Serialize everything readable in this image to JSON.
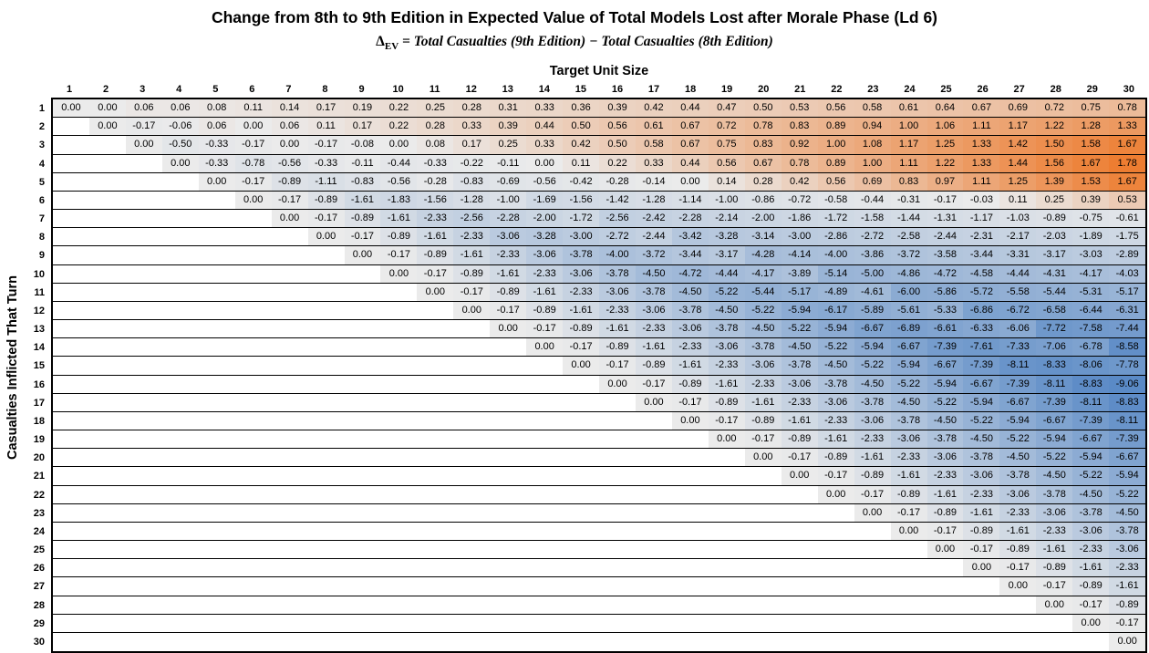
{
  "title": "Change from 8th to 9th Edition in Expected Value of Total Models Lost after Morale Phase (Ld 6)",
  "formula": {
    "delta": "Δ",
    "subscript": "EV",
    "rhs": " = Total Casualties (9th Edition) − Total Casualties (8th Edition)"
  },
  "x_axis_label": "Target Unit Size",
  "y_axis_label": "Casualties Inflicted That Turn",
  "chart_data": {
    "type": "heatmap",
    "title": "Change from 8th to 9th Edition in Expected Value of Total Models Lost after Morale Phase (Ld 6)",
    "subtitle": "ΔEV = Total Casualties (9th Edition) − Total Casualties (8th Edition)",
    "xlabel": "Target Unit Size",
    "ylabel": "Casualties Inflicted That Turn",
    "x": [
      1,
      2,
      3,
      4,
      5,
      6,
      7,
      8,
      9,
      10,
      11,
      12,
      13,
      14,
      15,
      16,
      17,
      18,
      19,
      20,
      21,
      22,
      23,
      24,
      25,
      26,
      27,
      28,
      29,
      30
    ],
    "y": [
      1,
      2,
      3,
      4,
      5,
      6,
      7,
      8,
      9,
      10,
      11,
      12,
      13,
      14,
      15,
      16,
      17,
      18,
      19,
      20,
      21,
      22,
      23,
      24,
      25,
      26,
      27,
      28,
      29,
      30
    ],
    "note": "Row r contains values for columns r through 30 (upper triangle); cells below the diagonal are blank.",
    "colorscale": {
      "min": -9.06,
      "mid": 0,
      "max": 1.78,
      "min_color": "#5A8AC6",
      "mid_color": "#EBEBEB",
      "max_color": "#ED7D31",
      "empty_color": "#FFFFFF"
    },
    "rows_values": [
      [
        0.0,
        0.0,
        0.06,
        0.06,
        0.08,
        0.11,
        0.14,
        0.17,
        0.19,
        0.22,
        0.25,
        0.28,
        0.31,
        0.33,
        0.36,
        0.39,
        0.42,
        0.44,
        0.47,
        0.5,
        0.53,
        0.56,
        0.58,
        0.61,
        0.64,
        0.67,
        0.69,
        0.72,
        0.75,
        0.78
      ],
      [
        0.0,
        -0.17,
        -0.06,
        0.06,
        0.0,
        0.06,
        0.11,
        0.17,
        0.22,
        0.28,
        0.33,
        0.39,
        0.44,
        0.5,
        0.56,
        0.61,
        0.67,
        0.72,
        0.78,
        0.83,
        0.89,
        0.94,
        1.0,
        1.06,
        1.11,
        1.17,
        1.22,
        1.28,
        1.33
      ],
      [
        0.0,
        -0.5,
        -0.33,
        -0.17,
        0.0,
        -0.17,
        -0.08,
        0.0,
        0.08,
        0.17,
        0.25,
        0.33,
        0.42,
        0.5,
        0.58,
        0.67,
        0.75,
        0.83,
        0.92,
        1.0,
        1.08,
        1.17,
        1.25,
        1.33,
        1.42,
        1.5,
        1.58,
        1.67
      ],
      [
        0.0,
        -0.33,
        -0.78,
        -0.56,
        -0.33,
        -0.11,
        -0.44,
        -0.33,
        -0.22,
        -0.11,
        0.0,
        0.11,
        0.22,
        0.33,
        0.44,
        0.56,
        0.67,
        0.78,
        0.89,
        1.0,
        1.11,
        1.22,
        1.33,
        1.44,
        1.56,
        1.67,
        1.78
      ],
      [
        0.0,
        -0.17,
        -0.89,
        -1.11,
        -0.83,
        -0.56,
        -0.28,
        -0.83,
        -0.69,
        -0.56,
        -0.42,
        -0.28,
        -0.14,
        0.0,
        0.14,
        0.28,
        0.42,
        0.56,
        0.69,
        0.83,
        0.97,
        1.11,
        1.25,
        1.39,
        1.53,
        1.67
      ],
      [
        0.0,
        -0.17,
        -0.89,
        -1.61,
        -1.83,
        -1.56,
        -1.28,
        -1.0,
        -1.69,
        -1.56,
        -1.42,
        -1.28,
        -1.14,
        -1.0,
        -0.86,
        -0.72,
        -0.58,
        -0.44,
        -0.31,
        -0.17,
        -0.03,
        0.11,
        0.25,
        0.39,
        0.53
      ],
      [
        0.0,
        -0.17,
        -0.89,
        -1.61,
        -2.33,
        -2.56,
        -2.28,
        -2.0,
        -1.72,
        -2.56,
        -2.42,
        -2.28,
        -2.14,
        -2.0,
        -1.86,
        -1.72,
        -1.58,
        -1.44,
        -1.31,
        -1.17,
        -1.03,
        -0.89,
        -0.75,
        -0.61
      ],
      [
        0.0,
        -0.17,
        -0.89,
        -1.61,
        -2.33,
        -3.06,
        -3.28,
        -3.0,
        -2.72,
        -2.44,
        -3.42,
        -3.28,
        -3.14,
        -3.0,
        -2.86,
        -2.72,
        -2.58,
        -2.44,
        -2.31,
        -2.17,
        -2.03,
        -1.89,
        -1.75
      ],
      [
        0.0,
        -0.17,
        -0.89,
        -1.61,
        -2.33,
        -3.06,
        -3.78,
        -4.0,
        -3.72,
        -3.44,
        -3.17,
        -4.28,
        -4.14,
        -4.0,
        -3.86,
        -3.72,
        -3.58,
        -3.44,
        -3.31,
        -3.17,
        -3.03,
        -2.89
      ],
      [
        0.0,
        -0.17,
        -0.89,
        -1.61,
        -2.33,
        -3.06,
        -3.78,
        -4.5,
        -4.72,
        -4.44,
        -4.17,
        -3.89,
        -5.14,
        -5.0,
        -4.86,
        -4.72,
        -4.58,
        -4.44,
        -4.31,
        -4.17,
        -4.03
      ],
      [
        0.0,
        -0.17,
        -0.89,
        -1.61,
        -2.33,
        -3.06,
        -3.78,
        -4.5,
        -5.22,
        -5.44,
        -5.17,
        -4.89,
        -4.61,
        -6.0,
        -5.86,
        -5.72,
        -5.58,
        -5.44,
        -5.31,
        -5.17
      ],
      [
        0.0,
        -0.17,
        -0.89,
        -1.61,
        -2.33,
        -3.06,
        -3.78,
        -4.5,
        -5.22,
        -5.94,
        -6.17,
        -5.89,
        -5.61,
        -5.33,
        -6.86,
        -6.72,
        -6.58,
        -6.44,
        -6.31
      ],
      [
        0.0,
        -0.17,
        -0.89,
        -1.61,
        -2.33,
        -3.06,
        -3.78,
        -4.5,
        -5.22,
        -5.94,
        -6.67,
        -6.89,
        -6.61,
        -6.33,
        -6.06,
        -7.72,
        -7.58,
        -7.44
      ],
      [
        0.0,
        -0.17,
        -0.89,
        -1.61,
        -2.33,
        -3.06,
        -3.78,
        -4.5,
        -5.22,
        -5.94,
        -6.67,
        -7.39,
        -7.61,
        -7.33,
        -7.06,
        -6.78,
        -8.58
      ],
      [
        0.0,
        -0.17,
        -0.89,
        -1.61,
        -2.33,
        -3.06,
        -3.78,
        -4.5,
        -5.22,
        -5.94,
        -6.67,
        -7.39,
        -8.11,
        -8.33,
        -8.06,
        -7.78
      ],
      [
        0.0,
        -0.17,
        -0.89,
        -1.61,
        -2.33,
        -3.06,
        -3.78,
        -4.5,
        -5.22,
        -5.94,
        -6.67,
        -7.39,
        -8.11,
        -8.83,
        -9.06
      ],
      [
        0.0,
        -0.17,
        -0.89,
        -1.61,
        -2.33,
        -3.06,
        -3.78,
        -4.5,
        -5.22,
        -5.94,
        -6.67,
        -7.39,
        -8.11,
        -8.83
      ],
      [
        0.0,
        -0.17,
        -0.89,
        -1.61,
        -2.33,
        -3.06,
        -3.78,
        -4.5,
        -5.22,
        -5.94,
        -6.67,
        -7.39,
        -8.11
      ],
      [
        0.0,
        -0.17,
        -0.89,
        -1.61,
        -2.33,
        -3.06,
        -3.78,
        -4.5,
        -5.22,
        -5.94,
        -6.67,
        -7.39
      ],
      [
        0.0,
        -0.17,
        -0.89,
        -1.61,
        -2.33,
        -3.06,
        -3.78,
        -4.5,
        -5.22,
        -5.94,
        -6.67
      ],
      [
        0.0,
        -0.17,
        -0.89,
        -1.61,
        -2.33,
        -3.06,
        -3.78,
        -4.5,
        -5.22,
        -5.94
      ],
      [
        0.0,
        -0.17,
        -0.89,
        -1.61,
        -2.33,
        -3.06,
        -3.78,
        -4.5,
        -5.22
      ],
      [
        0.0,
        -0.17,
        -0.89,
        -1.61,
        -2.33,
        -3.06,
        -3.78,
        -4.5
      ],
      [
        0.0,
        -0.17,
        -0.89,
        -1.61,
        -2.33,
        -3.06,
        -3.78
      ],
      [
        0.0,
        -0.17,
        -0.89,
        -1.61,
        -2.33,
        -3.06
      ],
      [
        0.0,
        -0.17,
        -0.89,
        -1.61,
        -2.33
      ],
      [
        0.0,
        -0.17,
        -0.89,
        -1.61
      ],
      [
        0.0,
        -0.17,
        -0.89
      ],
      [
        0.0,
        -0.17
      ],
      [
        0.0
      ]
    ]
  }
}
